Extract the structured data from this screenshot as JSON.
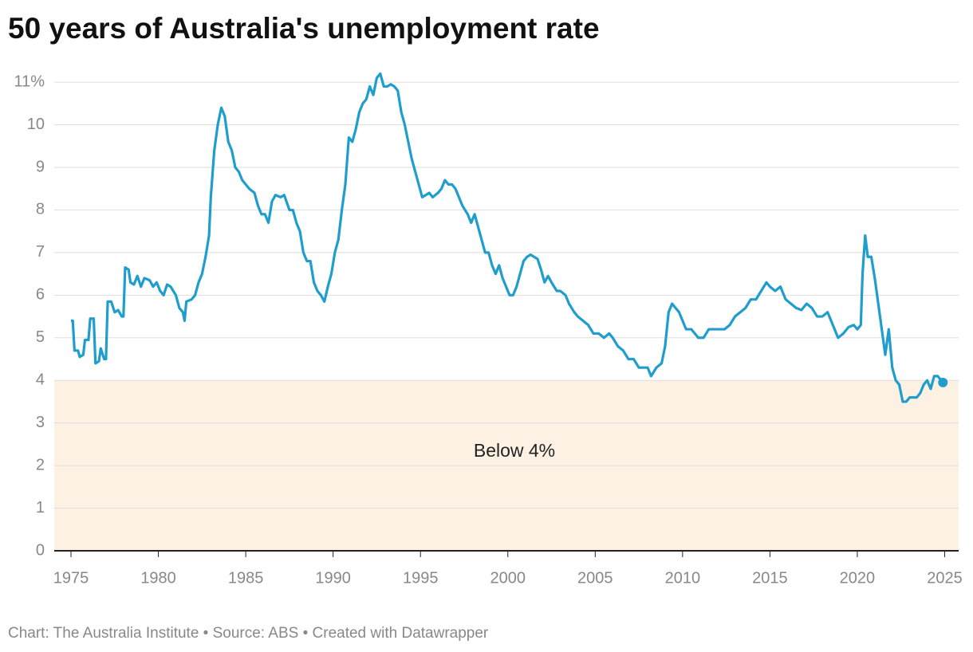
{
  "chart_data": {
    "type": "line",
    "title": "50 years of Australia's unemployment rate",
    "footer": "Chart: The Australia Institute  • Source: ABS • Created with Datawrapper",
    "color": "#1f9dcd",
    "xlim": [
      1974.04,
      2025.8
    ],
    "xticks": [
      1975,
      1980,
      1985,
      1990,
      1995,
      2000,
      2005,
      2010,
      2015,
      2020,
      2025
    ],
    "ylim": [
      0,
      11.2
    ],
    "yticks": [
      0,
      1,
      2,
      3,
      4,
      5,
      6,
      7,
      8,
      9,
      10,
      {
        "value": 11,
        "label": "11%"
      }
    ],
    "grid": true,
    "bands": [
      {
        "from": 0,
        "to": 4,
        "label": "Below 4%",
        "color": "#fdf1e4"
      }
    ],
    "end_marker": true,
    "x": [
      1975.0,
      1975.1,
      1975.2,
      1975.4,
      1975.5,
      1975.7,
      1975.8,
      1976.0,
      1976.1,
      1976.3,
      1976.4,
      1976.6,
      1976.7,
      1976.9,
      1977.0,
      1977.1,
      1977.3,
      1977.5,
      1977.7,
      1977.9,
      1978.0,
      1978.1,
      1978.3,
      1978.4,
      1978.6,
      1978.8,
      1979.0,
      1979.2,
      1979.5,
      1979.7,
      1979.9,
      1980.1,
      1980.3,
      1980.5,
      1980.7,
      1981.0,
      1981.2,
      1981.4,
      1981.5,
      1981.6,
      1981.9,
      1982.1,
      1982.3,
      1982.5,
      1982.7,
      1982.9,
      1983.0,
      1983.2,
      1983.4,
      1983.6,
      1983.8,
      1984.0,
      1984.2,
      1984.4,
      1984.6,
      1984.8,
      1985.0,
      1985.2,
      1985.5,
      1985.7,
      1985.9,
      1986.1,
      1986.3,
      1986.5,
      1986.7,
      1987.0,
      1987.2,
      1987.5,
      1987.7,
      1987.9,
      1988.1,
      1988.3,
      1988.5,
      1988.7,
      1988.9,
      1989.1,
      1989.3,
      1989.5,
      1989.7,
      1989.9,
      1990.1,
      1990.3,
      1990.5,
      1990.7,
      1990.9,
      1991.1,
      1991.3,
      1991.5,
      1991.7,
      1991.9,
      1992.1,
      1992.3,
      1992.5,
      1992.7,
      1992.9,
      1993.1,
      1993.3,
      1993.5,
      1993.7,
      1993.9,
      1994.1,
      1994.3,
      1994.5,
      1994.7,
      1994.9,
      1995.1,
      1995.3,
      1995.5,
      1995.7,
      1996.0,
      1996.2,
      1996.4,
      1996.6,
      1996.8,
      1997.0,
      1997.2,
      1997.4,
      1997.7,
      1997.9,
      1998.1,
      1998.3,
      1998.5,
      1998.7,
      1998.9,
      1999.1,
      1999.3,
      1999.5,
      1999.7,
      1999.9,
      2000.1,
      2000.3,
      2000.5,
      2000.7,
      2000.9,
      2001.1,
      2001.3,
      2001.5,
      2001.7,
      2001.9,
      2002.1,
      2002.3,
      2002.5,
      2002.8,
      2003.0,
      2003.3,
      2003.5,
      2003.8,
      2004.0,
      2004.3,
      2004.6,
      2004.9,
      2005.2,
      2005.5,
      2005.8,
      2006.0,
      2006.3,
      2006.6,
      2006.9,
      2007.2,
      2007.5,
      2007.8,
      2008.0,
      2008.2,
      2008.5,
      2008.8,
      2009.0,
      2009.2,
      2009.4,
      2009.6,
      2009.8,
      2010.0,
      2010.2,
      2010.5,
      2010.7,
      2010.9,
      2011.2,
      2011.5,
      2011.8,
      2012.1,
      2012.4,
      2012.7,
      2013.0,
      2013.3,
      2013.6,
      2013.9,
      2014.2,
      2014.5,
      2014.8,
      2015.0,
      2015.3,
      2015.6,
      2015.9,
      2016.2,
      2016.5,
      2016.8,
      2017.1,
      2017.4,
      2017.7,
      2018.0,
      2018.3,
      2018.6,
      2018.9,
      2019.2,
      2019.5,
      2019.8,
      2020.0,
      2020.2,
      2020.3,
      2020.45,
      2020.6,
      2020.8,
      2021.0,
      2021.2,
      2021.4,
      2021.6,
      2021.8,
      2022.0,
      2022.2,
      2022.4,
      2022.6,
      2022.8,
      2023.0,
      2023.2,
      2023.4,
      2023.6,
      2023.8,
      2024.0,
      2024.2,
      2024.4,
      2024.6,
      2024.8,
      2024.9
    ],
    "values": [
      5.4,
      5.4,
      4.7,
      4.7,
      4.55,
      4.6,
      4.95,
      4.95,
      5.45,
      5.45,
      4.4,
      4.45,
      4.75,
      4.5,
      4.5,
      5.85,
      5.85,
      5.6,
      5.65,
      5.5,
      5.5,
      6.65,
      6.6,
      6.3,
      6.25,
      6.45,
      6.2,
      6.4,
      6.35,
      6.2,
      6.3,
      6.1,
      6.0,
      6.25,
      6.2,
      6.0,
      5.7,
      5.6,
      5.4,
      5.85,
      5.9,
      6.0,
      6.3,
      6.5,
      6.9,
      7.4,
      8.3,
      9.4,
      10.0,
      10.4,
      10.2,
      9.6,
      9.4,
      9.0,
      8.9,
      8.7,
      8.6,
      8.5,
      8.4,
      8.1,
      7.9,
      7.9,
      7.7,
      8.2,
      8.35,
      8.3,
      8.35,
      8.0,
      8.0,
      7.7,
      7.5,
      7.0,
      6.8,
      6.8,
      6.3,
      6.1,
      6.0,
      5.85,
      6.2,
      6.5,
      7.0,
      7.3,
      8.0,
      8.6,
      9.7,
      9.6,
      9.9,
      10.3,
      10.5,
      10.6,
      10.9,
      10.7,
      11.1,
      11.2,
      10.9,
      10.9,
      10.95,
      10.9,
      10.8,
      10.3,
      10.0,
      9.6,
      9.2,
      8.9,
      8.6,
      8.3,
      8.35,
      8.4,
      8.3,
      8.4,
      8.5,
      8.7,
      8.6,
      8.6,
      8.5,
      8.3,
      8.1,
      7.9,
      7.7,
      7.9,
      7.6,
      7.3,
      7.0,
      7.0,
      6.7,
      6.5,
      6.7,
      6.4,
      6.2,
      6.0,
      6.0,
      6.2,
      6.5,
      6.8,
      6.9,
      6.95,
      6.9,
      6.85,
      6.6,
      6.3,
      6.45,
      6.3,
      6.1,
      6.1,
      6.0,
      5.8,
      5.6,
      5.5,
      5.4,
      5.3,
      5.1,
      5.1,
      5.0,
      5.1,
      5.0,
      4.8,
      4.7,
      4.5,
      4.5,
      4.3,
      4.3,
      4.3,
      4.1,
      4.3,
      4.4,
      4.8,
      5.6,
      5.8,
      5.7,
      5.6,
      5.4,
      5.2,
      5.2,
      5.1,
      5.0,
      5.0,
      5.2,
      5.2,
      5.2,
      5.2,
      5.3,
      5.5,
      5.6,
      5.7,
      5.9,
      5.9,
      6.1,
      6.3,
      6.2,
      6.1,
      6.2,
      5.9,
      5.8,
      5.7,
      5.65,
      5.8,
      5.7,
      5.5,
      5.5,
      5.6,
      5.3,
      5.0,
      5.1,
      5.25,
      5.3,
      5.2,
      5.3,
      6.5,
      7.4,
      6.9,
      6.9,
      6.4,
      5.8,
      5.2,
      4.6,
      5.2,
      4.3,
      4.0,
      3.9,
      3.5,
      3.5,
      3.6,
      3.6,
      3.6,
      3.7,
      3.9,
      4.0,
      3.8,
      4.1,
      4.1,
      4.0,
      3.95
    ]
  }
}
